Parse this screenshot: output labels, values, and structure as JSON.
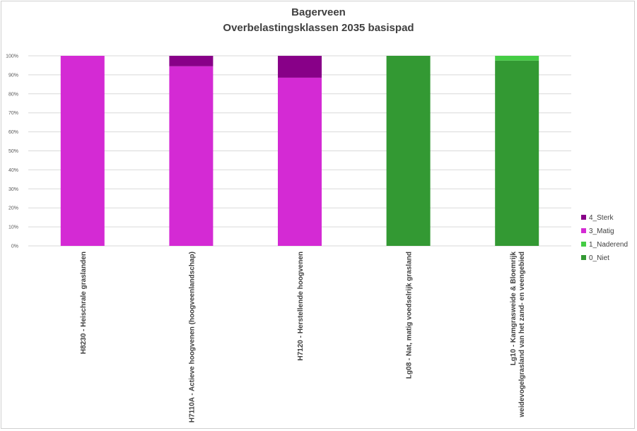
{
  "chart_data": {
    "type": "bar",
    "stacked": true,
    "title": "Bagerveen",
    "subtitle": "Overbelastingsklassen 2035 basispad",
    "xlabel": "",
    "ylabel": "",
    "ylim": [
      0,
      100
    ],
    "y_ticks": [
      "0%",
      "10%",
      "20%",
      "30%",
      "40%",
      "50%",
      "60%",
      "70%",
      "80%",
      "90%",
      "100%"
    ],
    "grid": true,
    "legend_position": "right",
    "categories": [
      [
        "H8230 - Heischrale graslanden"
      ],
      [
        "H7110A - Actieve hoogvenen (hoogveenlandschap)"
      ],
      [
        "H7120 - Herstellende hoogvenen"
      ],
      [
        "Lg08 - Nat, matig voedselrijk grasland"
      ],
      [
        "Lg10 - Kamgrasweide & Bloemrijk",
        "weidevogelgrasland van het zand- en veengebied"
      ]
    ],
    "series": [
      {
        "name": "0_Niet",
        "color": "#339933",
        "values": [
          0,
          0,
          0,
          100,
          97.5
        ]
      },
      {
        "name": "1_Naderend",
        "color": "#44cc44",
        "values": [
          0,
          0,
          0,
          0,
          2.5
        ]
      },
      {
        "name": "3_Matig",
        "color": "#d42ad4",
        "values": [
          100,
          94.5,
          88.5,
          0,
          0
        ]
      },
      {
        "name": "4_Sterk",
        "color": "#880088",
        "values": [
          0,
          5.5,
          11.5,
          0,
          0
        ]
      }
    ],
    "legend_order": [
      "4_Sterk",
      "3_Matig",
      "1_Naderend",
      "0_Niet"
    ]
  }
}
